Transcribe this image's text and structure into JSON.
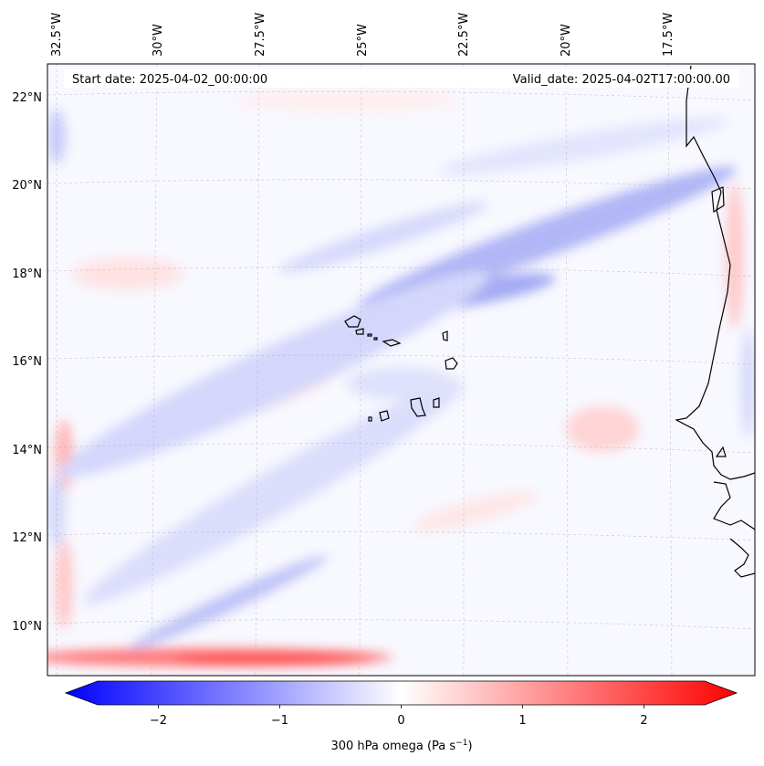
{
  "map": {
    "start_date": "Start date: 2025-04-02_00:00:00",
    "valid_date": "Valid_date: 2025-04-02T17:00:00.00",
    "lon_labels": [
      "32.5°W",
      "30°W",
      "27.5°W",
      "25°W",
      "22.5°W",
      "20°W",
      "17.5°W"
    ],
    "lat_labels": [
      "22°N",
      "20°N",
      "18°N",
      "16°N",
      "14°N",
      "12°N",
      "10°N"
    ]
  },
  "colorbar": {
    "label_prefix": "300 hPa omega (Pa s",
    "label_exponent": "−1",
    "label_suffix": ")",
    "ticks": [
      "−2",
      "−1",
      "0",
      "1",
      "2"
    ],
    "tick_values": [
      -2,
      -1,
      0,
      1,
      2
    ],
    "vmin": -2.5,
    "vmax": 2.5,
    "low_color": "#0000ff",
    "mid_color": "#ffffff",
    "high_color": "#ff0000"
  }
}
